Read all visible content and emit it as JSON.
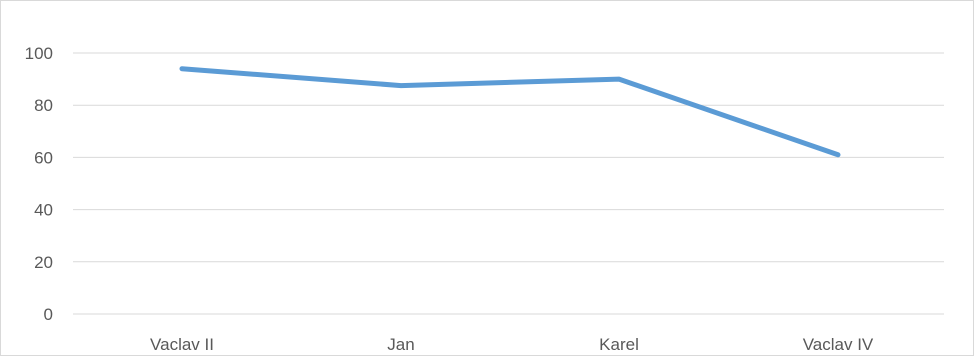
{
  "chart_data": {
    "type": "line",
    "categories": [
      "Vaclav II",
      "Jan",
      "Karel",
      "Vaclav IV"
    ],
    "series": [
      {
        "values": [
          94,
          87.5,
          90,
          61
        ],
        "color": "#5b9bd5"
      }
    ],
    "yticks": [
      "0",
      "20",
      "40",
      "60",
      "80",
      "100"
    ],
    "ylim": [
      0,
      100
    ],
    "grid": true,
    "gridline_color": "#d9d9d9",
    "legend": false
  }
}
